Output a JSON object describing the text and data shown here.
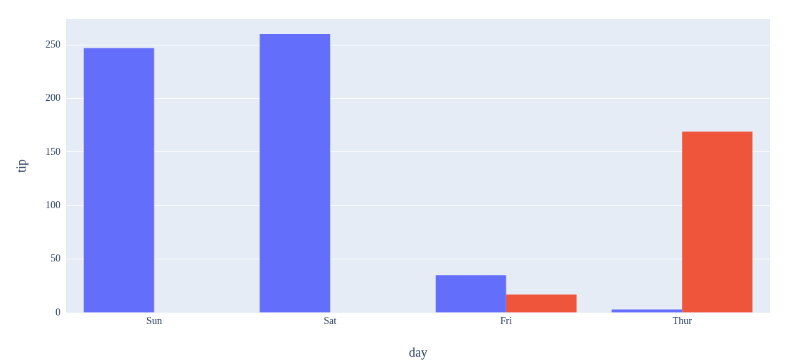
{
  "chart_data": {
    "type": "bar",
    "xlabel": "day",
    "ylabel": "tip",
    "categories": [
      "Sun",
      "Sat",
      "Fri",
      "Thur"
    ],
    "series": [
      {
        "color": "#636efa",
        "values": [
          247,
          260,
          35,
          3
        ]
      },
      {
        "color": "#ef553b",
        "values": [
          null,
          null,
          17,
          169
        ]
      }
    ],
    "ylim": [
      0,
      274
    ],
    "yticks": [
      0,
      50,
      100,
      150,
      200,
      250
    ],
    "grid": "y",
    "legend": false
  }
}
